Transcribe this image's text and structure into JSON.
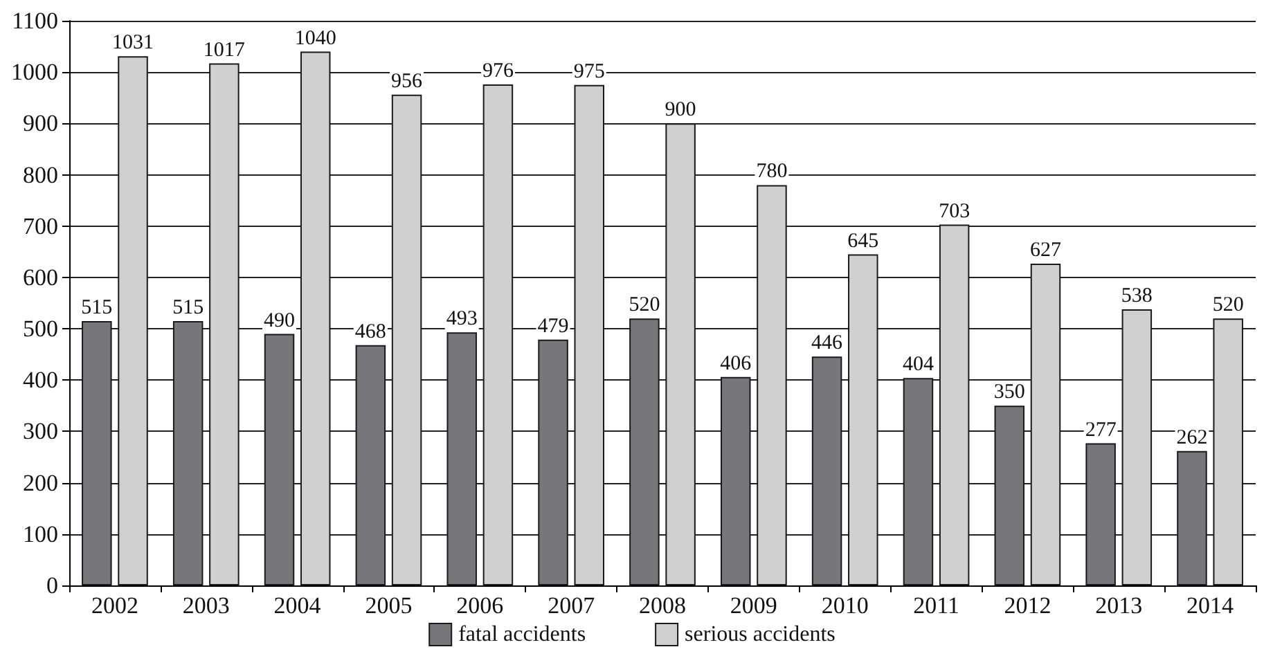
{
  "chart_data": {
    "type": "bar",
    "categories": [
      "2002",
      "2003",
      "2004",
      "2005",
      "2006",
      "2007",
      "2008",
      "2009",
      "2010",
      "2011",
      "2012",
      "2013",
      "2014"
    ],
    "series": [
      {
        "name": "fatal accidents",
        "color": "#77777b",
        "values": [
          515,
          515,
          490,
          468,
          493,
          479,
          520,
          406,
          446,
          404,
          350,
          277,
          262
        ]
      },
      {
        "name": "serious accidents",
        "color": "#d0d0d0",
        "values": [
          1031,
          1017,
          1040,
          956,
          976,
          975,
          900,
          780,
          645,
          703,
          627,
          538,
          520
        ]
      }
    ],
    "ylim": [
      0,
      1100
    ],
    "yticks": [
      0,
      100,
      200,
      300,
      400,
      500,
      600,
      700,
      800,
      900,
      1000,
      1100
    ],
    "grid": "y",
    "legend": "bottom",
    "data_labels": true
  }
}
